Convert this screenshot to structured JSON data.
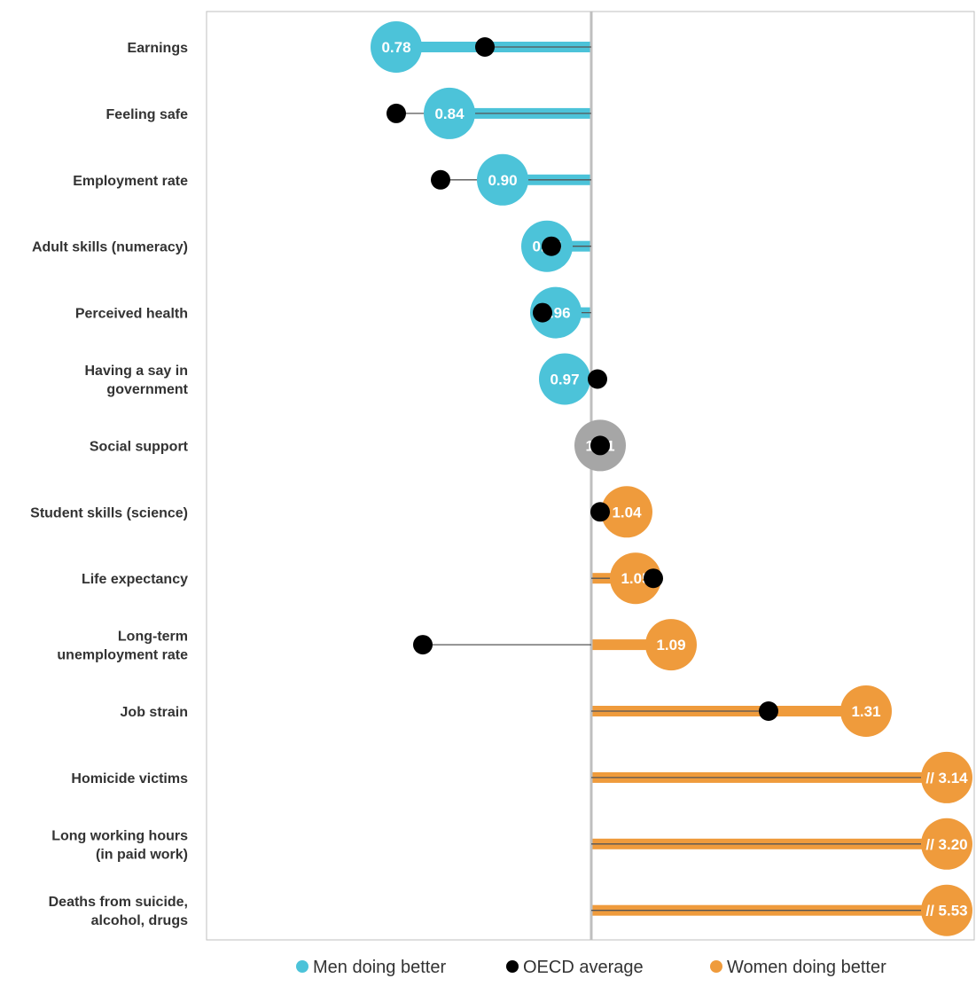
{
  "chart_data": {
    "type": "dot",
    "reference_value": 1.0,
    "xlim": [
      0.55,
      1.4
    ],
    "categories": [
      {
        "label": [
          "Earnings"
        ],
        "value": 0.78,
        "display": "0.78",
        "oecd": 0.88,
        "group": "men"
      },
      {
        "label": [
          "Feeling safe"
        ],
        "value": 0.84,
        "display": "0.84",
        "oecd": 0.78,
        "group": "men"
      },
      {
        "label": [
          "Employment rate"
        ],
        "value": 0.9,
        "display": "0.90",
        "oecd": 0.83,
        "group": "men"
      },
      {
        "label": [
          "Adult skills (numeracy)"
        ],
        "value": 0.95,
        "display": "0.95",
        "oecd": 0.955,
        "group": "men"
      },
      {
        "label": [
          "Perceived health"
        ],
        "value": 0.96,
        "display": "0.96",
        "oecd": 0.945,
        "group": "men"
      },
      {
        "label": [
          "Having a say in",
          "government"
        ],
        "value": 0.97,
        "display": "0.97",
        "oecd": 1.007,
        "group": "men"
      },
      {
        "label": [
          "Social support"
        ],
        "value": 1.01,
        "display": "1.01",
        "oecd": 1.01,
        "group": "neutral"
      },
      {
        "label": [
          "Student skills (science)"
        ],
        "value": 1.04,
        "display": "1.04",
        "oecd": 1.01,
        "group": "women"
      },
      {
        "label": [
          "Life expectancy"
        ],
        "value": 1.05,
        "display": "1.05",
        "oecd": 1.07,
        "group": "women"
      },
      {
        "label": [
          "Long-term",
          "unemployment rate"
        ],
        "value": 1.09,
        "display": "1.09",
        "oecd": 0.81,
        "group": "women"
      },
      {
        "label": [
          "Job strain"
        ],
        "value": 1.31,
        "display": "1.31",
        "oecd": 1.2,
        "group": "women"
      },
      {
        "label": [
          "Homicide victims"
        ],
        "value": 3.14,
        "display": "// 3.14",
        "oecd": null,
        "group": "women",
        "truncated": true
      },
      {
        "label": [
          "Long working hours",
          "(in paid work)"
        ],
        "value": 3.2,
        "display": "// 3.20",
        "oecd": null,
        "group": "women",
        "truncated": true
      },
      {
        "label": [
          "Deaths from suicide,",
          "alcohol, drugs"
        ],
        "value": 5.53,
        "display": "// 5.53",
        "oecd": null,
        "group": "women",
        "truncated": true
      }
    ],
    "legend": [
      {
        "label": "Men doing better",
        "color": "#4cc3d9"
      },
      {
        "label": "OECD average",
        "color": "#000000"
      },
      {
        "label": "Women doing better",
        "color": "#ef9b3c"
      }
    ],
    "colors": {
      "men": "#4cc3d9",
      "women": "#ef9b3c",
      "neutral": "#a6a6a6",
      "oecd": "#000000",
      "reference_line": "#bfbfbf",
      "frame": "#bfbfbf",
      "connector": "#555555"
    },
    "legend_position": "bottom",
    "grid": false
  }
}
